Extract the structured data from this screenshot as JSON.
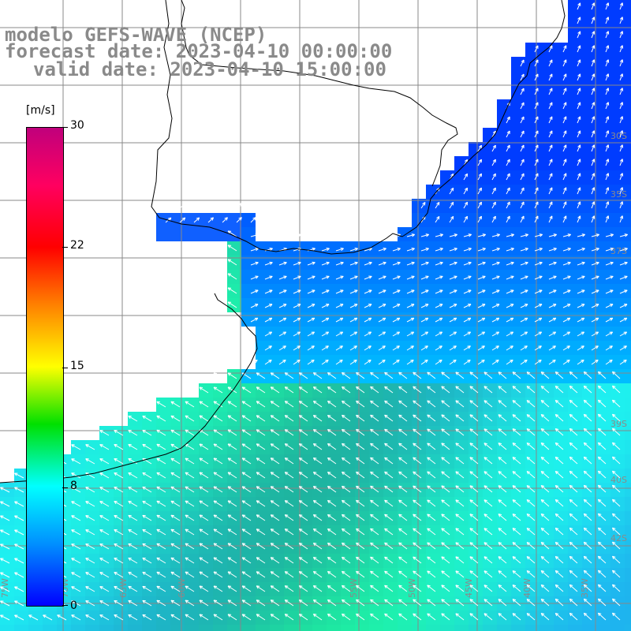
{
  "title": {
    "line1": "modelo GEFS-WAVE (NCEP)",
    "line2": "forecast date: 2023-04-10 00:00:00",
    "line3": "valid date: 2023-04-10 15:00:00"
  },
  "colorbar": {
    "units": "[m/s]",
    "ticks": [
      "30",
      "22",
      "15",
      "8",
      "0"
    ],
    "tick_values": [
      30,
      22,
      15,
      8,
      0
    ],
    "range": [
      0,
      30
    ],
    "colors": [
      "#0000ff",
      "#0090ff",
      "#00ffff",
      "#00e000",
      "#ffff00",
      "#ff8000",
      "#ff0000",
      "#ff0060",
      "#c0007c"
    ]
  },
  "grid_labels": {
    "lon": [
      "75W",
      "70W",
      "65W",
      "60W",
      "55W",
      "50W",
      "45W",
      "40W",
      "35W"
    ],
    "lat": [
      "30S",
      "35S",
      "37S",
      "39S",
      "40S",
      "42S"
    ]
  },
  "map": {
    "region": "South Atlantic / Rio de la Plata",
    "field": "wind speed",
    "land_color": "#ffffff",
    "coast_color": "#000000",
    "grid_color": "#888888",
    "arrow_color": "#ffffff"
  }
}
